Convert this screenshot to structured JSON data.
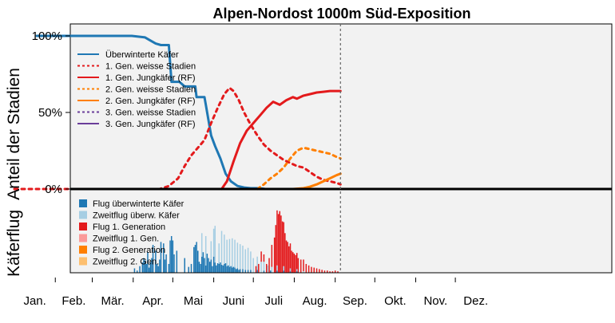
{
  "chart_data": {
    "type": "line",
    "title": "Alpen-Nordost 1000m Süd-Exposition",
    "ylabel_top": "Anteil der Stadien",
    "ylabel_bottom": "Käferflug",
    "y_ticks": [
      "100%",
      "50%",
      "0%"
    ],
    "ylim_top": [
      0,
      100
    ],
    "months": [
      "Jan.",
      "Feb.",
      "Mär.",
      "Apr.",
      "Mai",
      "Juni",
      "Juli",
      "Aug.",
      "Sep.",
      "Okt.",
      "Nov.",
      "Dez."
    ],
    "x_unit": "day of year",
    "xlim": [
      1,
      365
    ],
    "current_day": 248,
    "colors": {
      "overwintered": "#1f78b4",
      "gen1": "#e31a1c",
      "gen2": "#ff7f00",
      "gen3": "#6a3d9a",
      "flight_overwintered": "#1f78b4",
      "reflight_overwintered": "#a6cee3",
      "flight_gen1": "#e31a1c",
      "reflight_gen1": "#fb9a99",
      "flight_gen2": "#ff7f00",
      "reflight_gen2": "#fdbf6f",
      "panel_bg": "#f2f2f2"
    },
    "stage_series": [
      {
        "name": "Überwinterte Käfer",
        "color": "#1f78b4",
        "dash": false,
        "x": [
          18,
          90,
          100,
          104,
          108,
          112,
          118,
          120,
          126,
          130,
          138,
          139,
          145,
          146,
          150,
          153,
          157,
          161,
          165,
          170,
          175,
          180,
          187,
          191,
          248
        ],
        "y": [
          100,
          100,
          99,
          97,
          95,
          94,
          94,
          70,
          70,
          67,
          67,
          60,
          60,
          55,
          35,
          28,
          20,
          10,
          5,
          2,
          1,
          0.5,
          0.5,
          0,
          0
        ]
      },
      {
        "name": "1. Gen. weisse Stadien",
        "color": "#e31a1c",
        "dash": true,
        "x": [
          1,
          111,
          118,
          125,
          130,
          135,
          140,
          145,
          150,
          155,
          160,
          164,
          167,
          171,
          175,
          180,
          185,
          190,
          195,
          200,
          205,
          210,
          215,
          220,
          225,
          230,
          235,
          240,
          245,
          248
        ],
        "y": [
          0,
          0,
          2,
          7,
          15,
          22,
          27,
          32,
          43,
          53,
          62,
          66,
          64,
          58,
          50,
          42,
          35,
          29,
          25,
          22,
          19,
          17,
          15,
          14,
          11,
          8,
          6,
          5,
          4,
          3
        ]
      },
      {
        "name": "1. Gen. Jungkäfer (RF)",
        "color": "#e31a1c",
        "dash": false,
        "x": [
          158,
          162,
          167,
          172,
          177,
          182,
          187,
          192,
          197,
          202,
          207,
          212,
          215,
          220,
          225,
          230,
          235,
          240,
          245,
          248
        ],
        "y": [
          0,
          5,
          18,
          30,
          38,
          43,
          48,
          53,
          57,
          55,
          58,
          60,
          59,
          61,
          62,
          63,
          63.5,
          64,
          64,
          64
        ]
      },
      {
        "name": "2. Gen. weisse Stadien",
        "color": "#ff7f00",
        "dash": true,
        "x": [
          185,
          190,
          195,
          200,
          205,
          210,
          215,
          220,
          225,
          230,
          235,
          240,
          245,
          248
        ],
        "y": [
          0,
          3,
          7,
          10,
          14,
          20,
          25,
          27,
          26,
          25,
          24,
          23,
          21,
          20
        ]
      },
      {
        "name": "2. Gen. Jungkäfer (RF)",
        "color": "#ff7f00",
        "dash": false,
        "x": [
          212,
          220,
          225,
          230,
          235,
          240,
          245,
          248
        ],
        "y": [
          0,
          0.5,
          1.5,
          3,
          5,
          7,
          9,
          10
        ]
      },
      {
        "name": "3. Gen. weisse Stadien",
        "color": "#6a3d9a",
        "dash": true,
        "x": [],
        "y": []
      },
      {
        "name": "3. Gen. Jungkäfer (RF)",
        "color": "#6a3d9a",
        "dash": false,
        "x": [],
        "y": []
      }
    ],
    "flight_legend": [
      "Flug überwinterte Käfer",
      "Zweitflug überw. Käfer",
      "Flug 1. Generation",
      "Zweitflug 1. Gen.",
      "Flug 2. Generation",
      "Zweitflug 2. Gen."
    ],
    "flight_scale_note": "relative flight intensity, tallest bar = 100",
    "flight_bars": [
      {
        "name": "Flug überwinterte Käfer",
        "color": "#1f78b4",
        "x": [
          92,
          94,
          96,
          98,
          99,
          100,
          101,
          102,
          103,
          104,
          105,
          106,
          108,
          109,
          110,
          111,
          112,
          114,
          115,
          116,
          118,
          119,
          120,
          121,
          122,
          124,
          130,
          133,
          135,
          137,
          138,
          139,
          140,
          141,
          142,
          143,
          144,
          145,
          146,
          147,
          148,
          149,
          150,
          151,
          152,
          153,
          154,
          155,
          156,
          157,
          158,
          159,
          160,
          161,
          162,
          163,
          164,
          165,
          166,
          167,
          168,
          169,
          170,
          171,
          172,
          174,
          176,
          178,
          180,
          185,
          190,
          195,
          200,
          205,
          210,
          215
        ],
        "y": [
          6,
          3,
          9,
          14,
          20,
          17,
          12,
          28,
          7,
          14,
          20,
          38,
          30,
          12,
          9,
          18,
          42,
          40,
          18,
          25,
          12,
          44,
          50,
          44,
          25,
          30,
          20,
          8,
          12,
          35,
          38,
          42,
          30,
          15,
          12,
          22,
          28,
          20,
          10,
          26,
          20,
          15,
          18,
          9,
          22,
          14,
          10,
          13,
          12,
          14,
          11,
          10,
          12,
          13,
          9,
          10,
          8,
          9,
          7,
          8,
          7,
          5,
          6,
          4,
          5,
          5,
          4,
          4,
          4,
          4,
          3,
          3,
          3,
          3,
          2,
          2
        ]
      },
      {
        "name": "Zweitflug überw. Käfer",
        "color": "#a6cee3",
        "x": [
          143,
          146,
          150,
          152,
          153,
          156,
          158,
          160,
          162,
          164,
          166,
          168,
          170,
          172,
          174,
          176,
          178,
          180,
          182,
          185,
          188,
          190,
          193,
          196,
          200,
          205,
          210,
          215,
          220
        ],
        "y": [
          32,
          40,
          25,
          38,
          50,
          28,
          46,
          40,
          36,
          38,
          40,
          38,
          35,
          34,
          32,
          28,
          30,
          25,
          20,
          18,
          15,
          12,
          10,
          8,
          7,
          6,
          4,
          3,
          2
        ]
      },
      {
        "name": "Flug 1. Generation",
        "color": "#e31a1c",
        "x": [
          184,
          186,
          188,
          190,
          192,
          194,
          196,
          198,
          199,
          200,
          201,
          202,
          203,
          204,
          205,
          206,
          207,
          208,
          209,
          210,
          211,
          212,
          213,
          214,
          215,
          216,
          218,
          220,
          222,
          224,
          226,
          228,
          230,
          232,
          234,
          236,
          238,
          240,
          242,
          244,
          246
        ],
        "y": [
          9,
          12,
          14,
          10,
          12,
          20,
          30,
          48,
          65,
          75,
          80,
          84,
          78,
          70,
          60,
          54,
          44,
          42,
          36,
          34,
          30,
          28,
          26,
          24,
          22,
          20,
          18,
          16,
          12,
          10,
          8,
          7,
          6,
          5,
          4,
          3,
          3,
          2,
          2,
          3,
          2
        ]
      },
      {
        "name": "Zweitflug 1. Gen.",
        "color": "#fb9a99",
        "x": [],
        "y": []
      },
      {
        "name": "Flug 2. Generation",
        "color": "#ff7f00",
        "x": [],
        "y": []
      },
      {
        "name": "Zweitflug 2. Gen.",
        "color": "#fdbf6f",
        "x": [],
        "y": []
      }
    ]
  }
}
